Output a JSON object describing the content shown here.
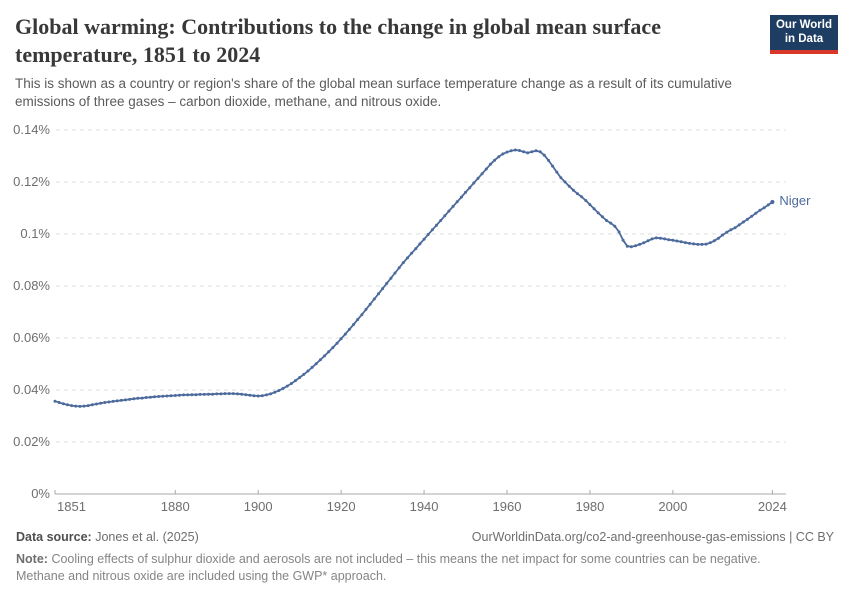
{
  "header": {
    "title": "Global warming: Contributions to the change in global mean surface temperature, 1851 to 2024",
    "subtitle": "This is shown as a country or region's share of the global mean surface temperature change as a result of its cumulative emissions of three gases – carbon dioxide, methane, and nitrous oxide.",
    "logo": {
      "line1": "Our World",
      "line2": "in Data",
      "bg_color": "#1d3d63",
      "accent_color": "#d8372a"
    }
  },
  "chart_data": {
    "type": "line",
    "title": "Global warming: Contributions to the change in global mean surface temperature, 1851 to 2024",
    "entity_label": "Niger",
    "unit": "%",
    "x_range": [
      1851,
      2024
    ],
    "x_step": 1,
    "xticks": [
      1851,
      1880,
      1900,
      1920,
      1940,
      1960,
      1980,
      2000,
      2024
    ],
    "yticks": [
      {
        "value": 0,
        "label": "0%"
      },
      {
        "value": 0.02,
        "label": "0.02%"
      },
      {
        "value": 0.04,
        "label": "0.04%"
      },
      {
        "value": 0.06,
        "label": "0.06%"
      },
      {
        "value": 0.08,
        "label": "0.08%"
      },
      {
        "value": 0.1,
        "label": "0.1%"
      },
      {
        "value": 0.12,
        "label": "0.12%"
      },
      {
        "value": 0.14,
        "label": "0.14%"
      }
    ],
    "ylim": [
      0,
      0.145
    ],
    "grid": "horizontal-dashed",
    "legend": "end-of-line-label",
    "series": [
      {
        "name": "Niger",
        "color": "#4c6a9c",
        "values": [
          0.0357,
          0.0352,
          0.0347,
          0.0343,
          0.034,
          0.0338,
          0.0337,
          0.0338,
          0.034,
          0.0343,
          0.0346,
          0.0349,
          0.0352,
          0.0354,
          0.0356,
          0.0358,
          0.036,
          0.0362,
          0.0364,
          0.0366,
          0.0368,
          0.0369,
          0.0371,
          0.0372,
          0.0374,
          0.0375,
          0.0376,
          0.0377,
          0.0378,
          0.0379,
          0.038,
          0.0381,
          0.0381,
          0.0382,
          0.0382,
          0.0383,
          0.0383,
          0.0384,
          0.0384,
          0.0385,
          0.0385,
          0.0386,
          0.0386,
          0.0386,
          0.0385,
          0.0384,
          0.0382,
          0.038,
          0.0378,
          0.0377,
          0.0378,
          0.0381,
          0.0385,
          0.0391,
          0.0398,
          0.0406,
          0.0415,
          0.0425,
          0.0436,
          0.0448,
          0.046,
          0.0473,
          0.0487,
          0.0501,
          0.0516,
          0.0531,
          0.0547,
          0.0563,
          0.058,
          0.0597,
          0.0615,
          0.0633,
          0.0652,
          0.0671,
          0.069,
          0.071,
          0.073,
          0.075,
          0.077,
          0.079,
          0.081,
          0.083,
          0.085,
          0.087,
          0.089,
          0.0908,
          0.0926,
          0.0944,
          0.0962,
          0.098,
          0.0998,
          0.1016,
          0.1034,
          0.1052,
          0.107,
          0.1088,
          0.1106,
          0.1124,
          0.1142,
          0.116,
          0.1178,
          0.1196,
          0.1214,
          0.1232,
          0.125,
          0.1268,
          0.1284,
          0.1297,
          0.1308,
          0.1315,
          0.132,
          0.1323,
          0.1321,
          0.1316,
          0.1312,
          0.1316,
          0.132,
          0.1316,
          0.1303,
          0.1283,
          0.1261,
          0.1238,
          0.1216,
          0.12,
          0.1184,
          0.1168,
          0.1155,
          0.1143,
          0.1129,
          0.1113,
          0.1097,
          0.1081,
          0.1066,
          0.1052,
          0.1042,
          0.103,
          0.1008,
          0.0976,
          0.0953,
          0.0951,
          0.0955,
          0.096,
          0.0966,
          0.0974,
          0.0981,
          0.0985,
          0.0984,
          0.0981,
          0.0978,
          0.0976,
          0.0973,
          0.097,
          0.0967,
          0.0964,
          0.0962,
          0.096,
          0.096,
          0.0961,
          0.0966,
          0.0974,
          0.0984,
          0.0996,
          0.1007,
          0.1016,
          0.1024,
          0.1035,
          0.1046,
          0.1057,
          0.1068,
          0.108,
          0.1091,
          0.1101,
          0.1112,
          0.1123
        ]
      }
    ]
  },
  "footer": {
    "data_source_label": "Data source:",
    "data_source_value": "Jones et al. (2025)",
    "attribution": "OurWorldinData.org/co2-and-greenhouse-gas-emissions | CC BY",
    "note_label": "Note:",
    "note_text": "Cooling effects of sulphur dioxide and aerosols are not included – this means the net impact for some countries can be negative. Methane and nitrous oxide are included using the GWP* approach."
  }
}
